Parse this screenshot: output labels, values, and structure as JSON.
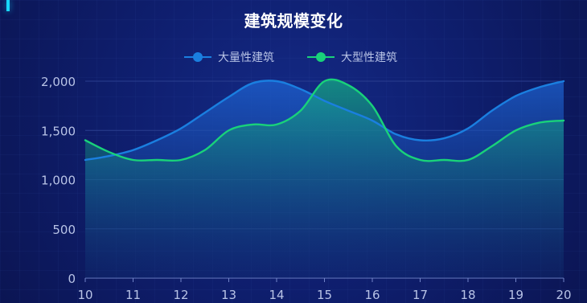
{
  "title": "建筑规模变化",
  "colors": {
    "large_scale": "#1a7fe0",
    "large_scale_fill": "#155bbe",
    "large_type": "#19d27a",
    "large_type_fill": "#0d8f7a",
    "axis_text": "#b8c3e6",
    "grid_line": "#2a3e8f"
  },
  "legend": [
    {
      "label": "大量性建筑",
      "color": "#1a7fe0"
    },
    {
      "label": "大型性建筑",
      "color": "#19d27a"
    }
  ],
  "chart_data": {
    "type": "area",
    "title": "建筑规模变化",
    "x": [
      10,
      10.5,
      11,
      11.5,
      12,
      12.5,
      13,
      13.5,
      14,
      14.5,
      15,
      15.5,
      16,
      16.5,
      17,
      17.5,
      18,
      18.5,
      19,
      19.5,
      20
    ],
    "x_ticks": [
      10,
      11,
      12,
      13,
      14,
      15,
      16,
      17,
      18,
      19,
      20
    ],
    "y_ticks": [
      "0",
      "500",
      "1,000",
      "1,500",
      "2,000"
    ],
    "ylim": [
      0,
      2000
    ],
    "xlim": [
      10,
      20
    ],
    "grid": "horizontal",
    "legend_position": "top-center",
    "series": [
      {
        "name": "大量性建筑",
        "values": [
          1200,
          1240,
          1300,
          1400,
          1520,
          1680,
          1840,
          1980,
          2000,
          1920,
          1800,
          1700,
          1600,
          1460,
          1400,
          1420,
          1520,
          1700,
          1850,
          1940,
          2000
        ]
      },
      {
        "name": "大型性建筑",
        "values": [
          1400,
          1280,
          1200,
          1200,
          1200,
          1300,
          1500,
          1560,
          1560,
          1700,
          2000,
          1960,
          1750,
          1340,
          1200,
          1200,
          1200,
          1340,
          1500,
          1580,
          1600
        ]
      }
    ]
  }
}
